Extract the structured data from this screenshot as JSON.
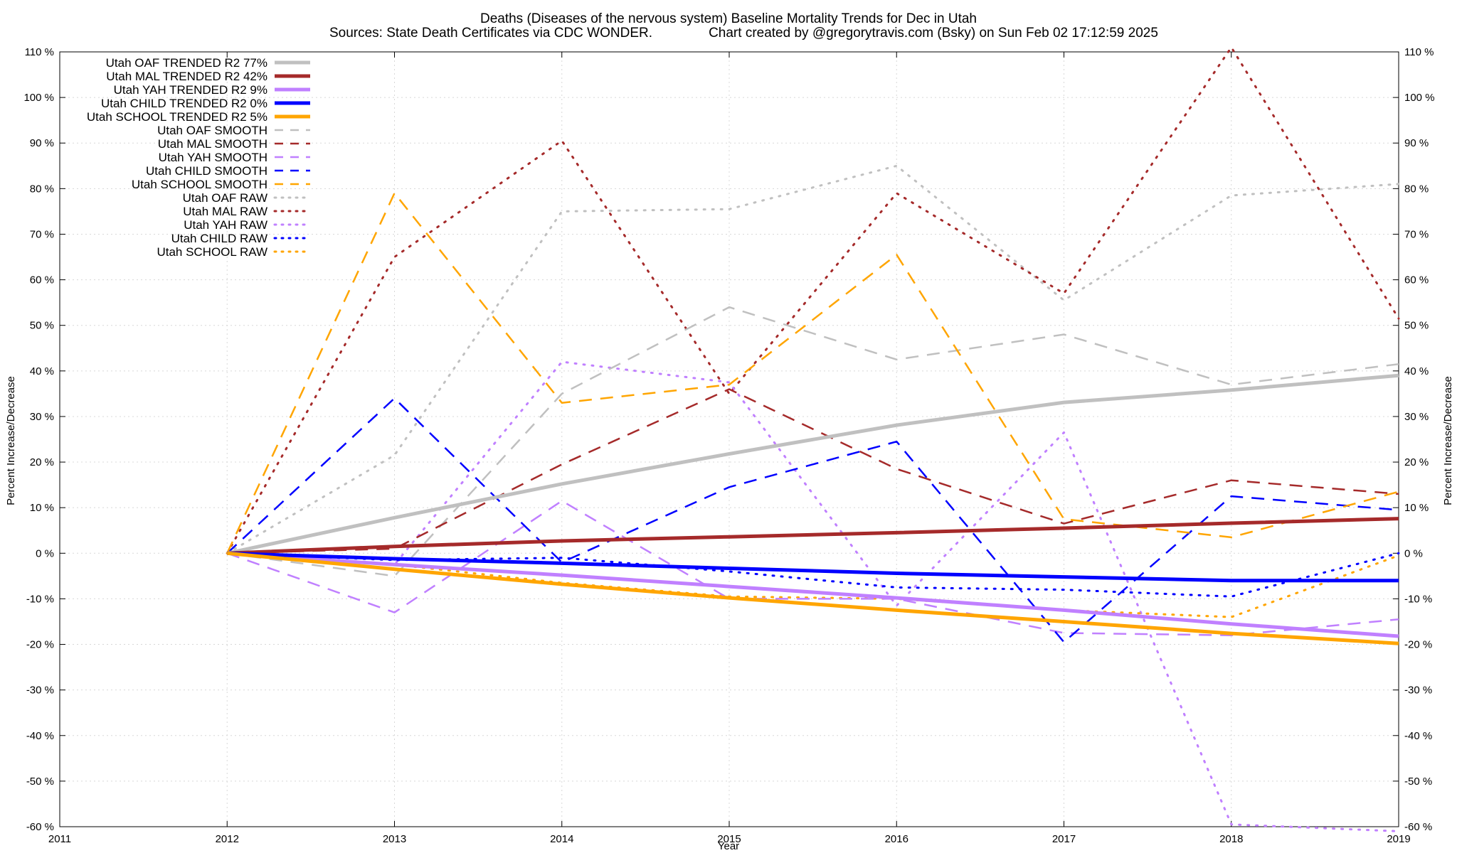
{
  "chart_data": {
    "type": "line",
    "title": "Deaths (Diseases of the nervous system)  Baseline Mortality Trends for Dec in Utah",
    "subtitle_left": "Sources: State Death Certificates via CDC WONDER.",
    "subtitle_right": "Chart created by @gregorytravis.com (Bsky) on Sun Feb 02 17:12:59 2025",
    "xlabel": "Year",
    "ylabel_left": "Percent Increase/Decrease",
    "ylabel_right": "Percent Increase/Decrease",
    "xlim": [
      2011,
      2019
    ],
    "ylim": [
      -60,
      110
    ],
    "x_ticks": [
      "2011",
      "2012",
      "2013",
      "2014",
      "2015",
      "2016",
      "2017",
      "2018",
      "2019"
    ],
    "y_ticks": [
      "110 %",
      "100 %",
      "90 %",
      "80 %",
      "70 %",
      "60 %",
      "50 %",
      "40 %",
      "30 %",
      "20 %",
      "10 %",
      "0 %",
      "-10 %",
      "-20 %",
      "-30 %",
      "-40 %",
      "-50 %",
      "-60 %"
    ],
    "grid": true,
    "legend_position": "top-left",
    "x": [
      2012,
      2013,
      2014,
      2015,
      2016,
      2017,
      2018,
      2019
    ],
    "series": [
      {
        "name": "Utah OAF TRENDED R2  77%",
        "style": "solid",
        "color": "#c0c0c0",
        "values": [
          0,
          7.8,
          15.2,
          21.8,
          28.1,
          33.1,
          35.8,
          39.0
        ]
      },
      {
        "name": "Utah MAL TRENDED R2  42%",
        "style": "solid",
        "color": "#a52a2a",
        "values": [
          0,
          1.5,
          2.7,
          3.6,
          4.5,
          5.5,
          6.6,
          7.6
        ]
      },
      {
        "name": "Utah YAH TRENDED R2   9%",
        "style": "solid",
        "color": "#c080ff",
        "values": [
          0,
          -2.5,
          -4.8,
          -7.3,
          -9.8,
          -12.5,
          -15.5,
          -18.2
        ]
      },
      {
        "name": "Utah CHILD TRENDED R2   0%",
        "style": "solid",
        "color": "#0000ff",
        "values": [
          0,
          -1.2,
          -2.2,
          -3.3,
          -4.4,
          -5.2,
          -6.0,
          -6.0
        ]
      },
      {
        "name": "Utah SCHOOL TRENDED R2   5%",
        "style": "solid",
        "color": "#ffa500",
        "values": [
          0,
          -3.5,
          -6.8,
          -9.8,
          -12.5,
          -15.0,
          -17.6,
          -19.8
        ]
      },
      {
        "name": "Utah OAF SMOOTH",
        "style": "dashed",
        "color": "#c0c0c0",
        "values": [
          0,
          -5.0,
          35.0,
          54.0,
          42.5,
          48.0,
          37.0,
          41.5
        ]
      },
      {
        "name": "Utah MAL SMOOTH",
        "style": "dashed",
        "color": "#a52a2a",
        "values": [
          0,
          1.0,
          19.5,
          36.0,
          18.5,
          6.5,
          16.0,
          13.0
        ]
      },
      {
        "name": "Utah YAH SMOOTH",
        "style": "dashed",
        "color": "#c080ff",
        "values": [
          0,
          -13.0,
          11.5,
          -10.0,
          -10.0,
          -17.5,
          -18.0,
          -14.5
        ]
      },
      {
        "name": "Utah CHILD SMOOTH",
        "style": "dashed",
        "color": "#0000ff",
        "values": [
          0,
          34.0,
          -2.0,
          14.5,
          24.5,
          -19.5,
          12.5,
          9.5
        ]
      },
      {
        "name": "Utah SCHOOL SMOOTH",
        "style": "dashed",
        "color": "#ffa500",
        "values": [
          0,
          79.0,
          33.0,
          37.0,
          65.5,
          7.5,
          3.5,
          13.5
        ]
      },
      {
        "name": "Utah OAF RAW",
        "style": "dotted",
        "color": "#c0c0c0",
        "values": [
          0,
          21.5,
          75.0,
          75.5,
          85.0,
          55.5,
          78.5,
          81.0
        ]
      },
      {
        "name": "Utah MAL RAW",
        "style": "dotted",
        "color": "#a52a2a",
        "values": [
          0,
          65.0,
          90.5,
          35.0,
          79.0,
          57.0,
          111.0,
          51.5
        ]
      },
      {
        "name": "Utah YAH RAW",
        "style": "dotted",
        "color": "#c080ff",
        "values": [
          0,
          -2.5,
          42.0,
          37.5,
          -11.5,
          26.5,
          -59.5,
          -61.0
        ]
      },
      {
        "name": "Utah CHILD RAW",
        "style": "dotted",
        "color": "#0000ff",
        "values": [
          0,
          -1.5,
          -1.0,
          -4.0,
          -7.5,
          -8.0,
          -9.5,
          0.0
        ]
      },
      {
        "name": "Utah SCHOOL RAW",
        "style": "dotted",
        "color": "#ffa500",
        "values": [
          0,
          -2.5,
          -6.5,
          -9.5,
          -10.0,
          -12.5,
          -14.0,
          -0.5
        ]
      }
    ]
  }
}
